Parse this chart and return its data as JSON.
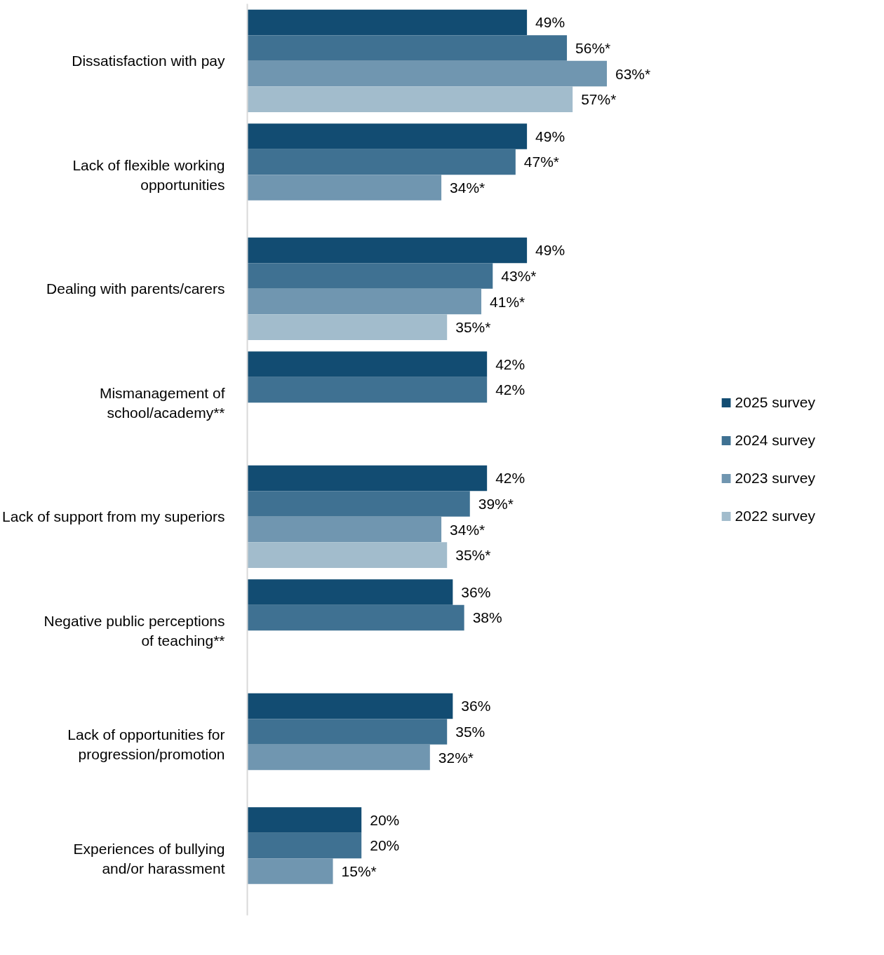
{
  "chart_data": {
    "type": "bar",
    "orientation": "horizontal",
    "legend": "right",
    "tick_labels": "y",
    "categories": [
      "Dissatisfaction with pay",
      "Lack of flexible working\nopportunities",
      "Dealing with parents/carers",
      "Mismanagement of\nschool/academy**",
      "Lack of support from my superiors",
      "Negative public perceptions\nof teaching**",
      "Lack of opportunities for\nprogression/promotion",
      "Experiences of bullying\nand/or harassment"
    ],
    "series": [
      {
        "name": "2025 survey",
        "color": "#124c72",
        "values": [
          49,
          49,
          49,
          42,
          42,
          36,
          36,
          20
        ],
        "value_labels": [
          "49%",
          "49%",
          "49%",
          "42%",
          "42%",
          "36%",
          "36%",
          "20%"
        ]
      },
      {
        "name": "2024 survey",
        "color": "#3f7192",
        "values": [
          56,
          47,
          43,
          42,
          39,
          38,
          35,
          20
        ],
        "value_labels": [
          "56%*",
          "47%*",
          "43%*",
          "42%",
          "39%*",
          "38%",
          "35%",
          "20%"
        ]
      },
      {
        "name": "2023 survey",
        "color": "#7096b0",
        "values": [
          63,
          34,
          41,
          null,
          34,
          null,
          32,
          15
        ],
        "value_labels": [
          "63%*",
          "34%*",
          "41%*",
          null,
          "34%*",
          null,
          "32%*",
          "15%*"
        ]
      },
      {
        "name": "2022 survey",
        "color": "#a2bccc",
        "values": [
          57,
          null,
          35,
          null,
          35,
          null,
          null,
          null
        ],
        "value_labels": [
          "57%*",
          null,
          "35%*",
          null,
          "35%*",
          null,
          null,
          null
        ]
      }
    ]
  }
}
